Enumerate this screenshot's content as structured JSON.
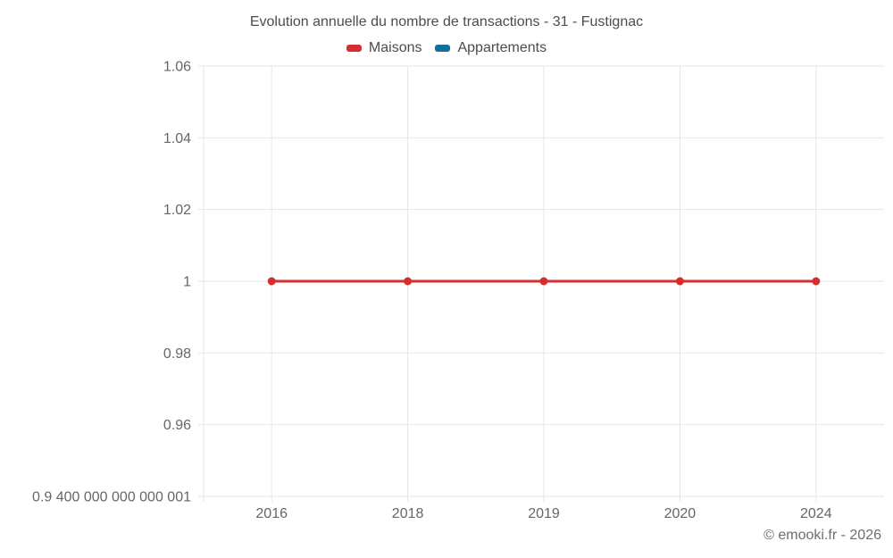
{
  "title": "Evolution annuelle du nombre de transactions - 31 - Fustignac",
  "footer": "© emooki.fr - 2026",
  "chart_data": {
    "type": "line",
    "title": "Evolution annuelle du nombre de transactions - 31 - Fustignac",
    "categories": [
      "2016",
      "2018",
      "2019",
      "2020",
      "2024"
    ],
    "series": [
      {
        "name": "Maisons",
        "color": "#d32f2f",
        "values": [
          1,
          1,
          1,
          1,
          1
        ]
      },
      {
        "name": "Appartements",
        "color": "#1270a0",
        "values": []
      }
    ],
    "xlabel": "",
    "ylabel": "",
    "ylim": [
      0.94,
      1.06
    ],
    "y_ticks": [
      1.06,
      1.04,
      1.02,
      1,
      0.98,
      0.96,
      0.94
    ],
    "y_tick_labels": [
      "1.06",
      "1.04",
      "1.02",
      "1",
      "0.98",
      "0.96",
      "0.9 400 000 000 000 001"
    ],
    "grid": true,
    "grid_color": "#e6e6e6",
    "tick_label_color": "#666666",
    "legend_position": "top",
    "line_width": 3,
    "point_radius": 4.5
  }
}
